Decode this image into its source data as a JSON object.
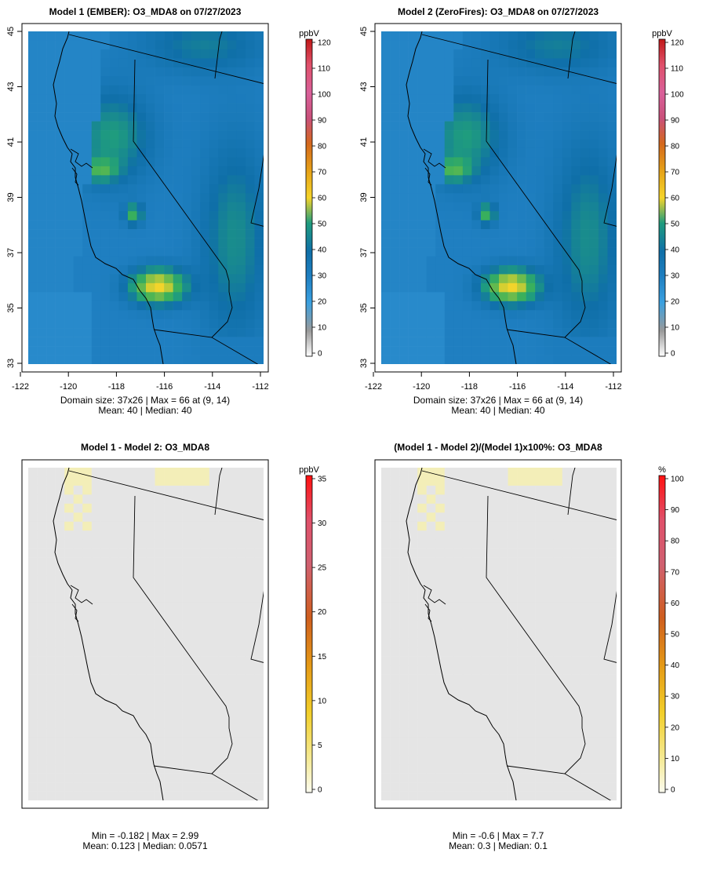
{
  "chart_data": [
    {
      "type": "heatmap",
      "title": "Model 1 (EMBER): O3_MDA8 on 07/27/2023",
      "units": "ppbV",
      "colorbar_ticks": [
        0,
        10,
        20,
        30,
        40,
        50,
        60,
        70,
        80,
        90,
        100,
        110,
        120
      ],
      "x_ticks": [
        "-122",
        "-120",
        "-118",
        "-116",
        "-114",
        "-112"
      ],
      "y_ticks": [
        "33",
        "35",
        "37",
        "39",
        "41",
        "43",
        "45"
      ],
      "xlim": [
        -122,
        -112
      ],
      "ylim": [
        33,
        45
      ],
      "stats_line1": "Domain size: 37x26 | Max = 66 at (9, 14)",
      "stats_line2": "Mean: 40 |  Median: 40"
    },
    {
      "type": "heatmap",
      "title": "Model 2 (ZeroFires): O3_MDA8 on 07/27/2023",
      "units": "ppbV",
      "colorbar_ticks": [
        0,
        10,
        20,
        30,
        40,
        50,
        60,
        70,
        80,
        90,
        100,
        110,
        120
      ],
      "x_ticks": [
        "-122",
        "-120",
        "-118",
        "-116",
        "-114",
        "-112"
      ],
      "y_ticks": [
        "33",
        "35",
        "37",
        "39",
        "41",
        "43",
        "45"
      ],
      "xlim": [
        -122,
        -112
      ],
      "ylim": [
        33,
        45
      ],
      "stats_line1": "Domain size: 37x26 | Max = 66 at (9, 14)",
      "stats_line2": "Mean: 40 |  Median: 40"
    },
    {
      "type": "heatmap",
      "title": "Model 1 - Model 2: O3_MDA8",
      "units": "ppbV",
      "colorbar_ticks": [
        0,
        5,
        10,
        15,
        20,
        25,
        30,
        35
      ],
      "stats_line1": "Min = -0.182 | Max = 2.99",
      "stats_line2": "Mean: 0.123 |  Median: 0.0571"
    },
    {
      "type": "heatmap",
      "title": "(Model 1 - Model 2)/(Model 1)x100%: O3_MDA8",
      "units": "%",
      "colorbar_ticks": [
        0,
        10,
        20,
        30,
        40,
        50,
        60,
        70,
        80,
        90,
        100
      ],
      "stats_line1": "Min = -0.6 | Max = 7.7",
      "stats_line2": "Mean: 0.3 |  Median: 0.1"
    }
  ],
  "colors": {
    "base_blue": "#2a8fd1",
    "mid_blue": "#1f7ab8",
    "teal": "#1fa38a",
    "green": "#3bb15a",
    "yellow": "#f2cd2c",
    "diff_background": "#e5e5e5",
    "diff_hot": "#f3eeb8"
  }
}
